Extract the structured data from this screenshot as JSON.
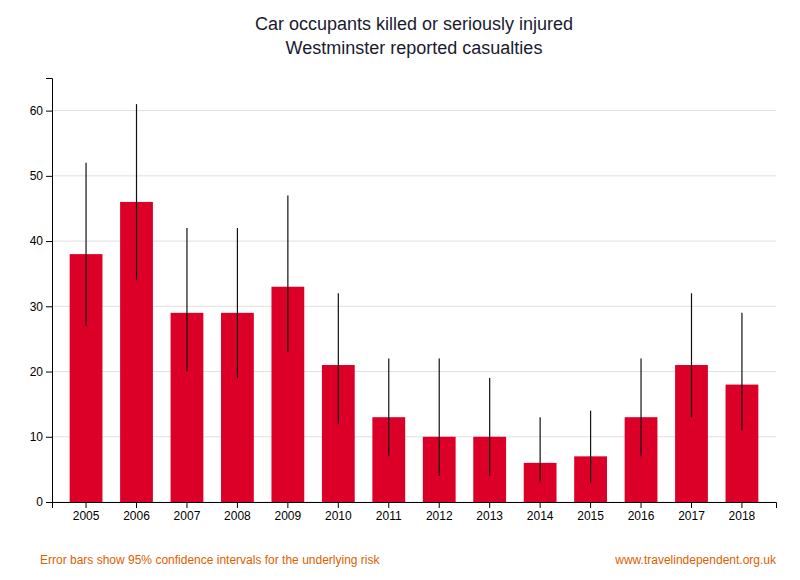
{
  "chart_data": {
    "type": "bar",
    "title": "Car occupants killed or seriously injured",
    "subtitle": "Westminster reported casualties",
    "categories": [
      "2005",
      "2006",
      "2007",
      "2008",
      "2009",
      "2010",
      "2011",
      "2012",
      "2013",
      "2014",
      "2015",
      "2016",
      "2017",
      "2018"
    ],
    "values": [
      38,
      46,
      29,
      29,
      33,
      21,
      13,
      10,
      10,
      6,
      7,
      13,
      21,
      18
    ],
    "error_upper": [
      14,
      15,
      13,
      13,
      14,
      11,
      9,
      12,
      9,
      7,
      7,
      9,
      11,
      11
    ],
    "error_lower": [
      11,
      12,
      9,
      10,
      10,
      9,
      6,
      6,
      6,
      3,
      4,
      6,
      8,
      7
    ],
    "color": "#dc0028",
    "ylim": [
      0,
      65
    ],
    "yticks": [
      0,
      10,
      20,
      30,
      40,
      50,
      60
    ],
    "grid": true,
    "annotations": [
      "Error bars show 95% confidence intervals for the underlying risk",
      "www.travelindependent.org.uk"
    ]
  }
}
